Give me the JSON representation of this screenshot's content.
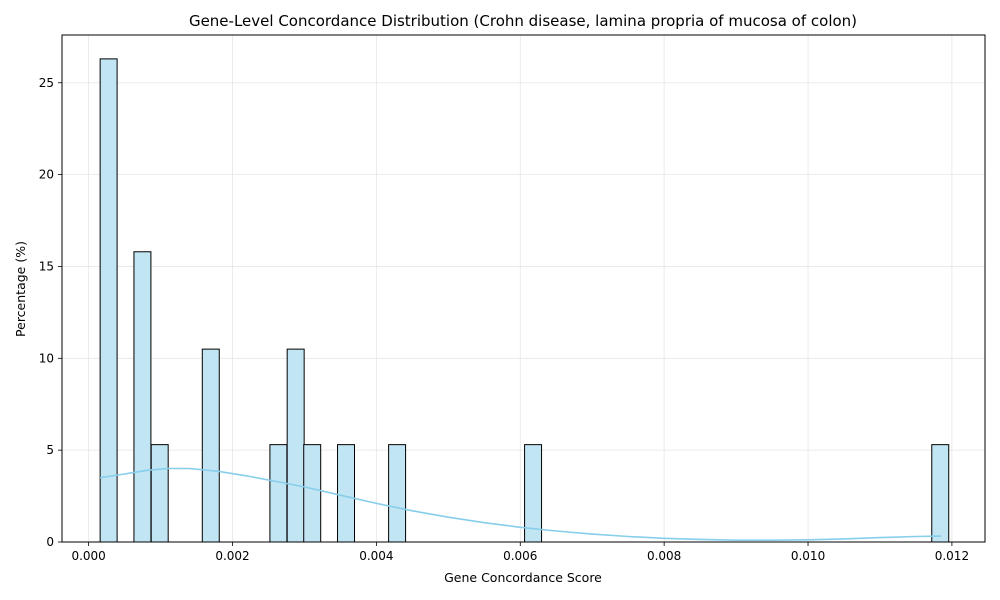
{
  "chart_data": {
    "type": "bar",
    "title": "Gene-Level Concordance Distribution (Crohn disease, lamina propria of mucosa of colon)",
    "xlabel": "Gene Concordance Score",
    "ylabel": "Percentage (%)",
    "xlim": [
      -0.00037,
      0.01246
    ],
    "ylim": [
      0,
      27.6
    ],
    "grid": true,
    "x_ticks": [
      "0.000",
      "0.002",
      "0.004",
      "0.006",
      "0.008",
      "0.010",
      "0.012"
    ],
    "x_tick_values": [
      0,
      0.002,
      0.004,
      0.006,
      0.008,
      0.01,
      0.012
    ],
    "y_ticks": [
      "0",
      "5",
      "10",
      "15",
      "20",
      "25"
    ],
    "y_tick_values": [
      0,
      5,
      10,
      15,
      20,
      25
    ],
    "bin_width": 0.000236,
    "bars": [
      {
        "x": 0.00016,
        "value": 26.3
      },
      {
        "x": 0.00063,
        "value": 15.8
      },
      {
        "x": 0.00087,
        "value": 5.3
      },
      {
        "x": 0.00158,
        "value": 10.5
      },
      {
        "x": 0.00252,
        "value": 5.3
      },
      {
        "x": 0.00276,
        "value": 10.5
      },
      {
        "x": 0.00299,
        "value": 5.3
      },
      {
        "x": 0.00346,
        "value": 5.3
      },
      {
        "x": 0.00417,
        "value": 5.3
      },
      {
        "x": 0.00606,
        "value": 5.3
      },
      {
        "x": 0.01172,
        "value": 5.3
      }
    ],
    "kde": {
      "x": [
        0.00016,
        0.0005,
        0.0008,
        0.0011,
        0.0014,
        0.0018,
        0.0022,
        0.0026,
        0.003,
        0.0035,
        0.004,
        0.0045,
        0.005,
        0.0055,
        0.006,
        0.0065,
        0.007,
        0.0075,
        0.008,
        0.0085,
        0.009,
        0.0095,
        0.01,
        0.0105,
        0.011,
        0.0115,
        0.01185
      ],
      "y": [
        3.5,
        3.7,
        3.9,
        4.0,
        4.0,
        3.85,
        3.6,
        3.3,
        3.0,
        2.55,
        2.1,
        1.7,
        1.35,
        1.05,
        0.8,
        0.6,
        0.43,
        0.3,
        0.2,
        0.14,
        0.1,
        0.1,
        0.12,
        0.17,
        0.24,
        0.3,
        0.32
      ]
    },
    "colors": {
      "bar_fill": "#c2e5f3",
      "bar_edge": "#000000",
      "kde_line": "#87ceeb",
      "grid": "#e6e6e6"
    }
  }
}
